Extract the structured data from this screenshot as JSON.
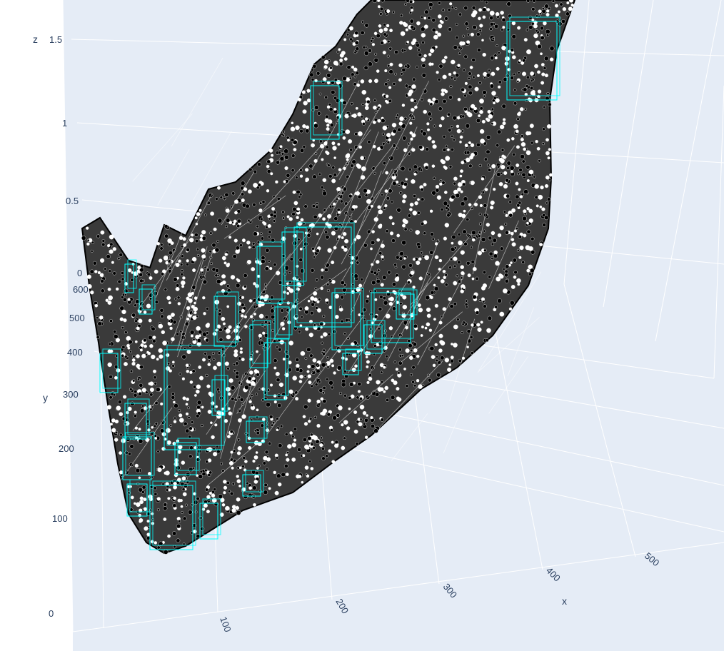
{
  "chart_data": {
    "type": "scatter",
    "subtype": "scatter3d",
    "title": "",
    "axes": {
      "x": {
        "label": "x",
        "ticks": [
          "100",
          "200",
          "300",
          "400",
          "500"
        ]
      },
      "y": {
        "label": "y",
        "ticks": [
          "100",
          "200",
          "300",
          "400",
          "500",
          "600"
        ]
      },
      "z": {
        "label": "z",
        "ticks": [
          "0",
          "0.5",
          "1",
          "1.5"
        ]
      },
      "bottom_tick": "0"
    },
    "series": [
      {
        "kind": "terrain-points",
        "marker_color": "#000000",
        "marker_outline": "#ffffff"
      },
      {
        "kind": "bounding-boxes",
        "line_color": "#00ffff"
      }
    ],
    "colors": {
      "pane": "#e5ecf6",
      "grid": "#ffffff",
      "tick_text": "#2a3f5f"
    }
  }
}
